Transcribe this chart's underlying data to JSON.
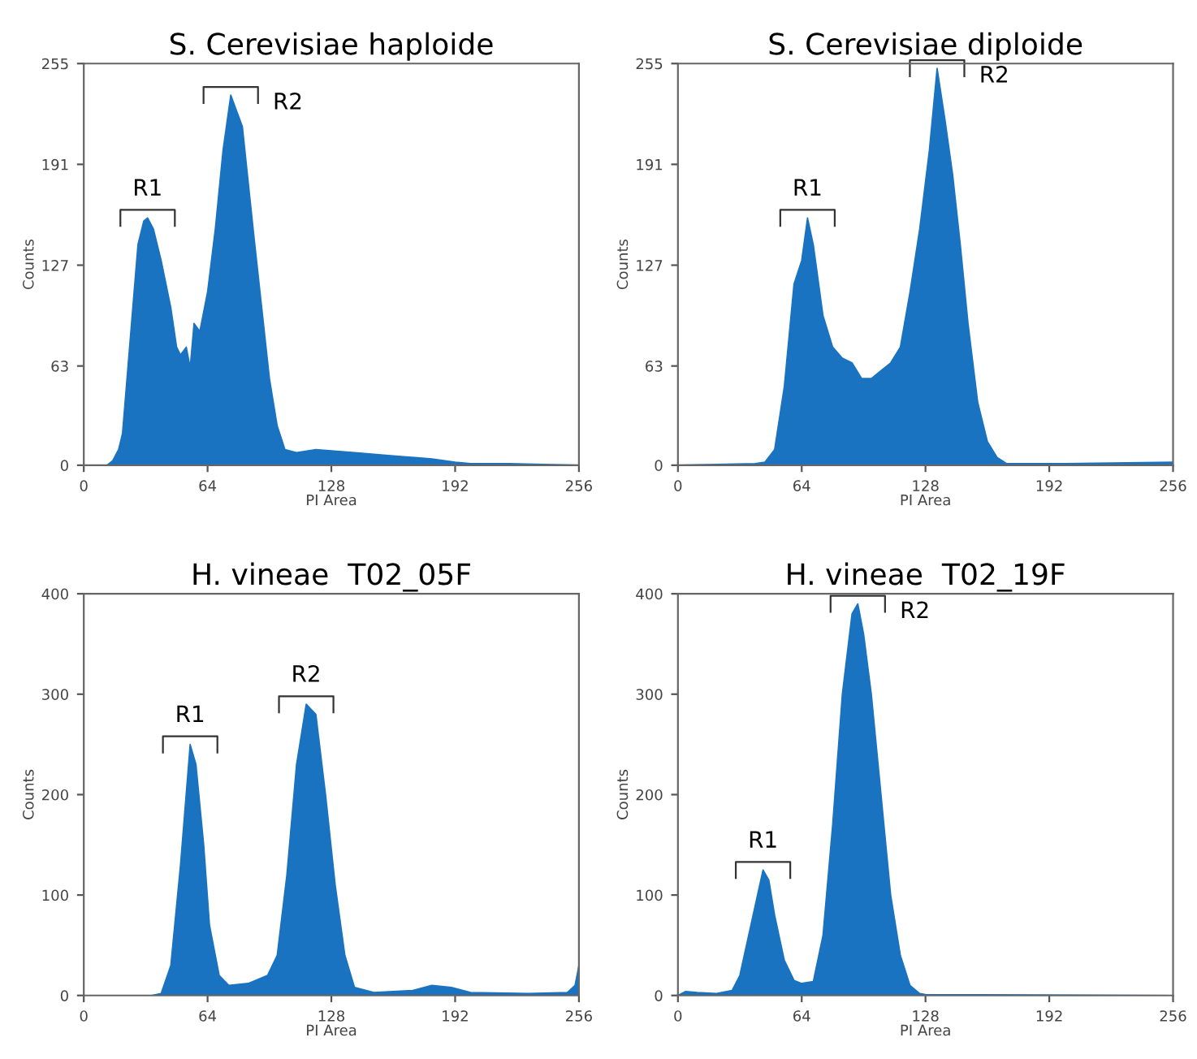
{
  "chart_data": [
    {
      "type": "area",
      "title": "S. Cerevisiae haploide",
      "xlabel": "PI Area",
      "ylabel": "Counts",
      "xlim": [
        0,
        256
      ],
      "ylim": [
        0,
        255
      ],
      "xticks": [
        0,
        64,
        128,
        192,
        256
      ],
      "yticks": [
        0,
        63,
        127,
        191,
        255
      ],
      "grid": false,
      "legend": false,
      "series": [
        {
          "color": "#1a73c0",
          "x": [
            0,
            12,
            15,
            18,
            20,
            24,
            28,
            31,
            33,
            36,
            40,
            45,
            48,
            50,
            53,
            55,
            57,
            60,
            64,
            68,
            72,
            76,
            79,
            82,
            85,
            88,
            92,
            96,
            100,
            104,
            110,
            120,
            140,
            160,
            180,
            192,
            200,
            220,
            256
          ],
          "values": [
            0,
            0,
            3,
            10,
            20,
            80,
            140,
            155,
            157,
            150,
            130,
            100,
            75,
            70,
            75,
            62,
            90,
            85,
            110,
            150,
            200,
            235,
            225,
            215,
            180,
            145,
            100,
            55,
            25,
            10,
            8,
            10,
            8,
            6,
            4,
            2,
            1,
            1,
            0
          ]
        }
      ],
      "annotations": [
        {
          "text": "R1",
          "x": 33,
          "y": 157
        },
        {
          "text": "R2",
          "x": 76,
          "y": 235
        }
      ]
    },
    {
      "type": "area",
      "title": "S. Cerevisiae diploide",
      "xlabel": "PI Area",
      "ylabel": "Counts",
      "xlim": [
        0,
        256
      ],
      "ylim": [
        0,
        255
      ],
      "xticks": [
        0,
        64,
        128,
        192,
        256
      ],
      "yticks": [
        0,
        63,
        127,
        191,
        255
      ],
      "grid": false,
      "legend": false,
      "series": [
        {
          "color": "#1a73c0",
          "x": [
            0,
            40,
            45,
            50,
            55,
            60,
            64,
            67,
            70,
            75,
            80,
            85,
            90,
            95,
            100,
            105,
            110,
            115,
            120,
            125,
            130,
            134,
            138,
            142,
            146,
            150,
            155,
            160,
            165,
            170,
            200,
            256
          ],
          "values": [
            0,
            1,
            2,
            10,
            50,
            115,
            130,
            157,
            140,
            95,
            75,
            68,
            65,
            55,
            55,
            60,
            65,
            75,
            110,
            150,
            200,
            252,
            220,
            185,
            140,
            90,
            40,
            15,
            5,
            1,
            1,
            2
          ]
        }
      ],
      "annotations": [
        {
          "text": "R1",
          "x": 67,
          "y": 157
        },
        {
          "text": "R2",
          "x": 134,
          "y": 252
        }
      ]
    },
    {
      "type": "area",
      "title": "H. vineae  T02_05F",
      "xlabel": "PI Area",
      "ylabel": "Counts",
      "xlim": [
        0,
        256
      ],
      "ylim": [
        0,
        400
      ],
      "xticks": [
        0,
        64,
        128,
        192,
        256
      ],
      "yticks": [
        0,
        100,
        200,
        300,
        400
      ],
      "grid": false,
      "legend": false,
      "series": [
        {
          "color": "#1a73c0",
          "x": [
            0,
            35,
            40,
            45,
            50,
            55,
            58,
            62,
            65,
            70,
            75,
            85,
            95,
            100,
            105,
            110,
            115,
            120,
            125,
            130,
            135,
            140,
            150,
            170,
            180,
            190,
            200,
            230,
            250,
            254,
            256
          ],
          "values": [
            0,
            0,
            2,
            30,
            130,
            250,
            230,
            150,
            70,
            20,
            10,
            12,
            20,
            40,
            120,
            230,
            290,
            280,
            200,
            110,
            40,
            8,
            3,
            5,
            10,
            8,
            3,
            2,
            3,
            10,
            30
          ]
        }
      ],
      "annotations": [
        {
          "text": "R1",
          "x": 55,
          "y": 250
        },
        {
          "text": "R2",
          "x": 115,
          "y": 290
        }
      ]
    },
    {
      "type": "area",
      "title": "H. vineae  T02_19F",
      "xlabel": "PI Area",
      "ylabel": "Counts",
      "xlim": [
        0,
        256
      ],
      "ylim": [
        0,
        400
      ],
      "xticks": [
        0,
        64,
        128,
        192,
        256
      ],
      "yticks": [
        0,
        100,
        200,
        300,
        400
      ],
      "grid": false,
      "legend": false,
      "series": [
        {
          "color": "#1a73c0",
          "x": [
            0,
            4,
            10,
            20,
            28,
            32,
            36,
            40,
            44,
            47,
            50,
            55,
            60,
            64,
            70,
            75,
            80,
            85,
            90,
            93,
            96,
            100,
            105,
            110,
            115,
            120,
            125,
            128,
            256
          ],
          "values": [
            0,
            4,
            3,
            2,
            5,
            20,
            55,
            90,
            125,
            115,
            80,
            35,
            15,
            12,
            14,
            60,
            170,
            300,
            380,
            390,
            360,
            300,
            200,
            100,
            40,
            10,
            2,
            1,
            0
          ]
        }
      ],
      "annotations": [
        {
          "text": "R1",
          "x": 44,
          "y": 125
        },
        {
          "text": "R2",
          "x": 93,
          "y": 390
        }
      ]
    }
  ]
}
